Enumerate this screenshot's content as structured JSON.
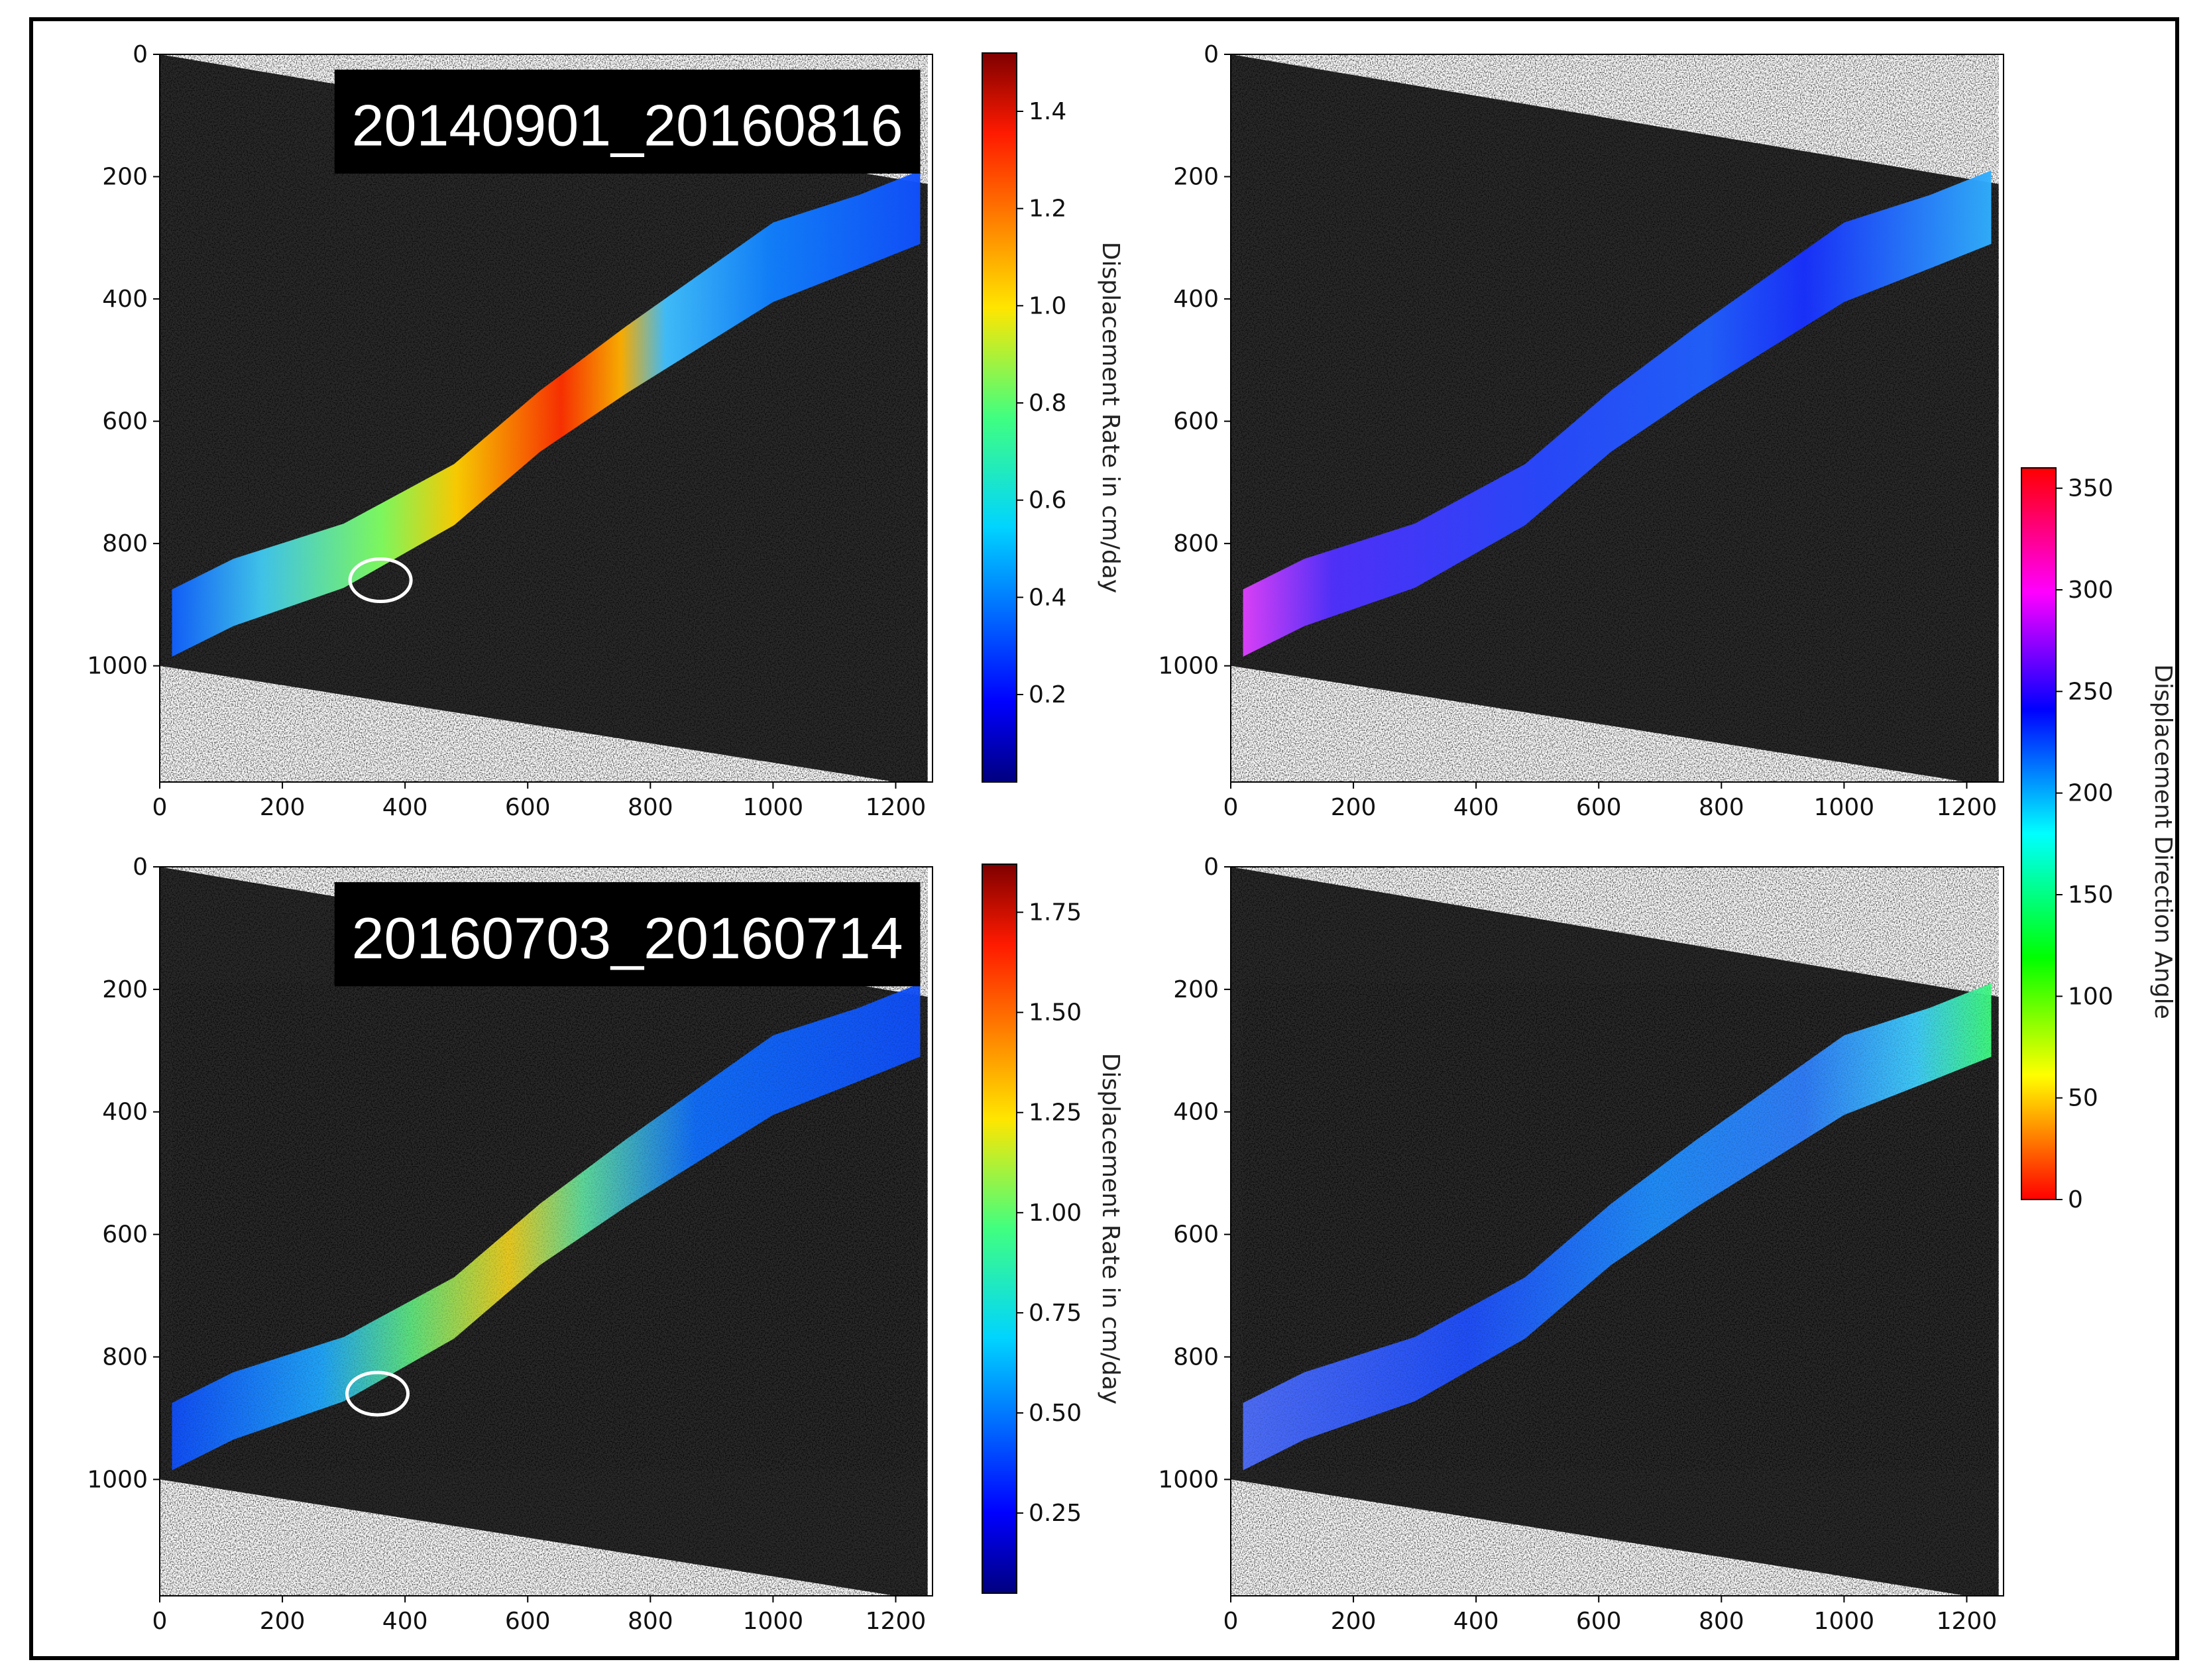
{
  "colors": {
    "background": "#ffffff",
    "frame": "#000000",
    "sar_dark": "#2a2a2a",
    "sar_light": "#d8d8d8",
    "annotation_circle": "#ffffff",
    "label_box": "#000000",
    "label_text": "#ffffff"
  },
  "chart_data": [
    {
      "type": "heatmap",
      "panel": "top-left",
      "overlay_label": "20140901_20160816",
      "xlim": [
        0,
        1260
      ],
      "ylim": [
        1190,
        0
      ],
      "xticks": [
        "0",
        "200",
        "400",
        "600",
        "800",
        "1000",
        "1200"
      ],
      "yticks": [
        "0",
        "200",
        "400",
        "600",
        "800",
        "1000"
      ],
      "colormap": "jet",
      "colorbar": {
        "label": "Displacement Rate in cm/day",
        "range": [
          0.02,
          1.52
        ],
        "ticks": [
          "0.2",
          "0.4",
          "0.6",
          "0.8",
          "1.0",
          "1.2",
          "1.4"
        ]
      },
      "annotation": {
        "type": "ellipse",
        "center": [
          360,
          860
        ]
      }
    },
    {
      "type": "heatmap",
      "panel": "top-right",
      "xlim": [
        0,
        1260
      ],
      "ylim": [
        1190,
        0
      ],
      "xticks": [
        "0",
        "200",
        "400",
        "600",
        "800",
        "1000",
        "1200"
      ],
      "yticks": [
        "0",
        "200",
        "400",
        "600",
        "800",
        "1000"
      ],
      "colormap": "hsv",
      "uses_shared_colorbar": "Displacement Direction Angle"
    },
    {
      "type": "heatmap",
      "panel": "bottom-left",
      "overlay_label": "20160703_20160714",
      "xlim": [
        0,
        1260
      ],
      "ylim": [
        1190,
        0
      ],
      "xticks": [
        "0",
        "200",
        "400",
        "600",
        "800",
        "1000",
        "1200"
      ],
      "yticks": [
        "0",
        "200",
        "400",
        "600",
        "800",
        "1000"
      ],
      "colormap": "jet",
      "colorbar": {
        "label": "Displacement Rate in cm/day",
        "range": [
          0.05,
          1.87
        ],
        "ticks": [
          "0.25",
          "0.50",
          "0.75",
          "1.00",
          "1.25",
          "1.50",
          "1.75"
        ]
      },
      "annotation": {
        "type": "ellipse",
        "center": [
          355,
          860
        ]
      }
    },
    {
      "type": "heatmap",
      "panel": "bottom-right",
      "xlim": [
        0,
        1260
      ],
      "ylim": [
        1190,
        0
      ],
      "xticks": [
        "0",
        "200",
        "400",
        "600",
        "800",
        "1000",
        "1200"
      ],
      "yticks": [
        "0",
        "200",
        "400",
        "600",
        "800",
        "1000"
      ],
      "colormap": "hsv",
      "uses_shared_colorbar": "Displacement Direction Angle"
    }
  ],
  "direction_colorbar": {
    "label": "Displacement Direction Angle",
    "range": [
      0,
      360
    ],
    "ticks": [
      "0",
      "50",
      "100",
      "150",
      "200",
      "250",
      "300",
      "350"
    ]
  }
}
